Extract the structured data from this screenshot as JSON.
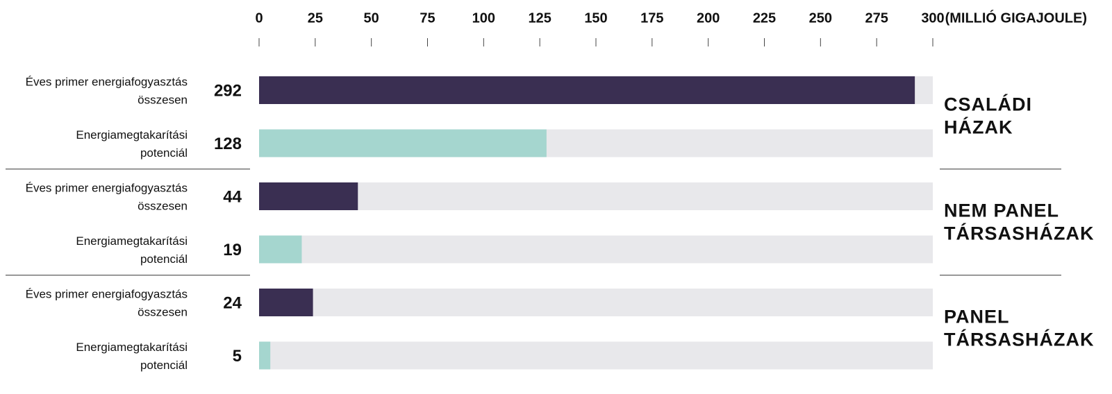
{
  "chart_data": {
    "type": "bar",
    "orientation": "horizontal",
    "x_label": "(MILLIÓ GIGAJOULE)",
    "xlim": [
      0,
      300
    ],
    "xticks": [
      0,
      25,
      50,
      75,
      100,
      125,
      150,
      175,
      200,
      225,
      250,
      275,
      300
    ],
    "colors": [
      "#3a2f52",
      "#a5d6cf"
    ],
    "groups": [
      {
        "name": [
          "CSALÁDI",
          "HÁZAK"
        ],
        "categories": [
          [
            "Éves primer energiafogyasztás",
            "összesen"
          ],
          [
            "Energiamegtakarítási",
            "potenciál"
          ]
        ],
        "values": [
          292,
          128
        ]
      },
      {
        "name": [
          "NEM PANEL",
          "TÁRSASHÁZAK"
        ],
        "categories": [
          [
            "Éves primer energiafogyasztás",
            "összesen"
          ],
          [
            "Energiamegtakarítási",
            "potenciál"
          ]
        ],
        "values": [
          44,
          19
        ]
      },
      {
        "name": [
          "PANEL",
          "TÁRSASHÁZAK"
        ],
        "categories": [
          [
            "Éves primer energiafogyasztás",
            "összesen"
          ],
          [
            "Energiamegtakarítási",
            "potenciál"
          ]
        ],
        "values": [
          24,
          5
        ]
      }
    ]
  }
}
